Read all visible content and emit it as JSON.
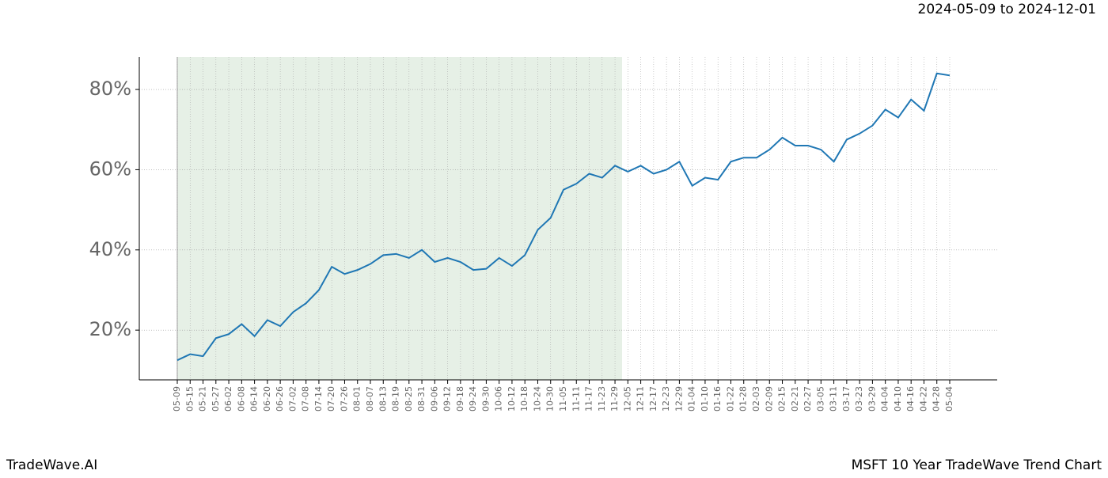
{
  "chart_data": {
    "type": "line",
    "title": "2024-05-09 to 2024-12-01",
    "brand": "TradeWave.AI",
    "subtitle": "MSFT 10 Year TradeWave Trend Chart",
    "categories": [
      "05-09",
      "05-15",
      "05-21",
      "05-27",
      "06-02",
      "06-08",
      "06-14",
      "06-20",
      "06-26",
      "07-02",
      "07-08",
      "07-14",
      "07-20",
      "07-26",
      "08-01",
      "08-07",
      "08-13",
      "08-19",
      "08-25",
      "08-31",
      "09-06",
      "09-12",
      "09-18",
      "09-24",
      "09-30",
      "10-06",
      "10-12",
      "10-18",
      "10-24",
      "10-30",
      "11-05",
      "11-11",
      "11-17",
      "11-23",
      "11-29",
      "12-05",
      "12-11",
      "12-17",
      "12-23",
      "12-29",
      "01-04",
      "01-10",
      "01-16",
      "01-22",
      "01-28",
      "02-03",
      "02-09",
      "02-15",
      "02-21",
      "02-27",
      "03-05",
      "03-11",
      "03-17",
      "03-23",
      "03-29",
      "04-04",
      "04-10",
      "04-16",
      "04-22",
      "04-28",
      "05-04"
    ],
    "series": [
      {
        "color": "#1f77b4",
        "values": [
          12.5,
          14,
          13.5,
          18,
          19,
          21.5,
          18.5,
          22.5,
          21,
          24.5,
          26.7,
          30,
          35.8,
          34,
          35,
          36.5,
          38.7,
          39,
          38,
          40,
          37,
          38,
          37,
          35,
          35.3,
          38,
          36,
          38.7,
          45,
          48,
          55,
          56.5,
          59,
          58,
          61,
          59.5,
          61,
          59,
          60,
          62,
          56,
          58,
          57.5,
          62,
          63,
          63,
          65,
          68,
          66,
          66,
          65,
          62,
          67.5,
          69,
          71,
          75,
          73,
          77.5,
          74.7,
          84,
          83.5
        ]
      }
    ],
    "highlight": [
      "05-09",
      "11-29"
    ],
    "highlight_color": "#e6f0e6",
    "ylim": [
      7.6,
      88.1
    ],
    "yticks": [
      {
        "value": 20,
        "label": "20%"
      },
      {
        "value": 40,
        "label": "40%"
      },
      {
        "value": 60,
        "label": "60%"
      },
      {
        "value": 80,
        "label": "80%"
      }
    ],
    "grid": true
  }
}
